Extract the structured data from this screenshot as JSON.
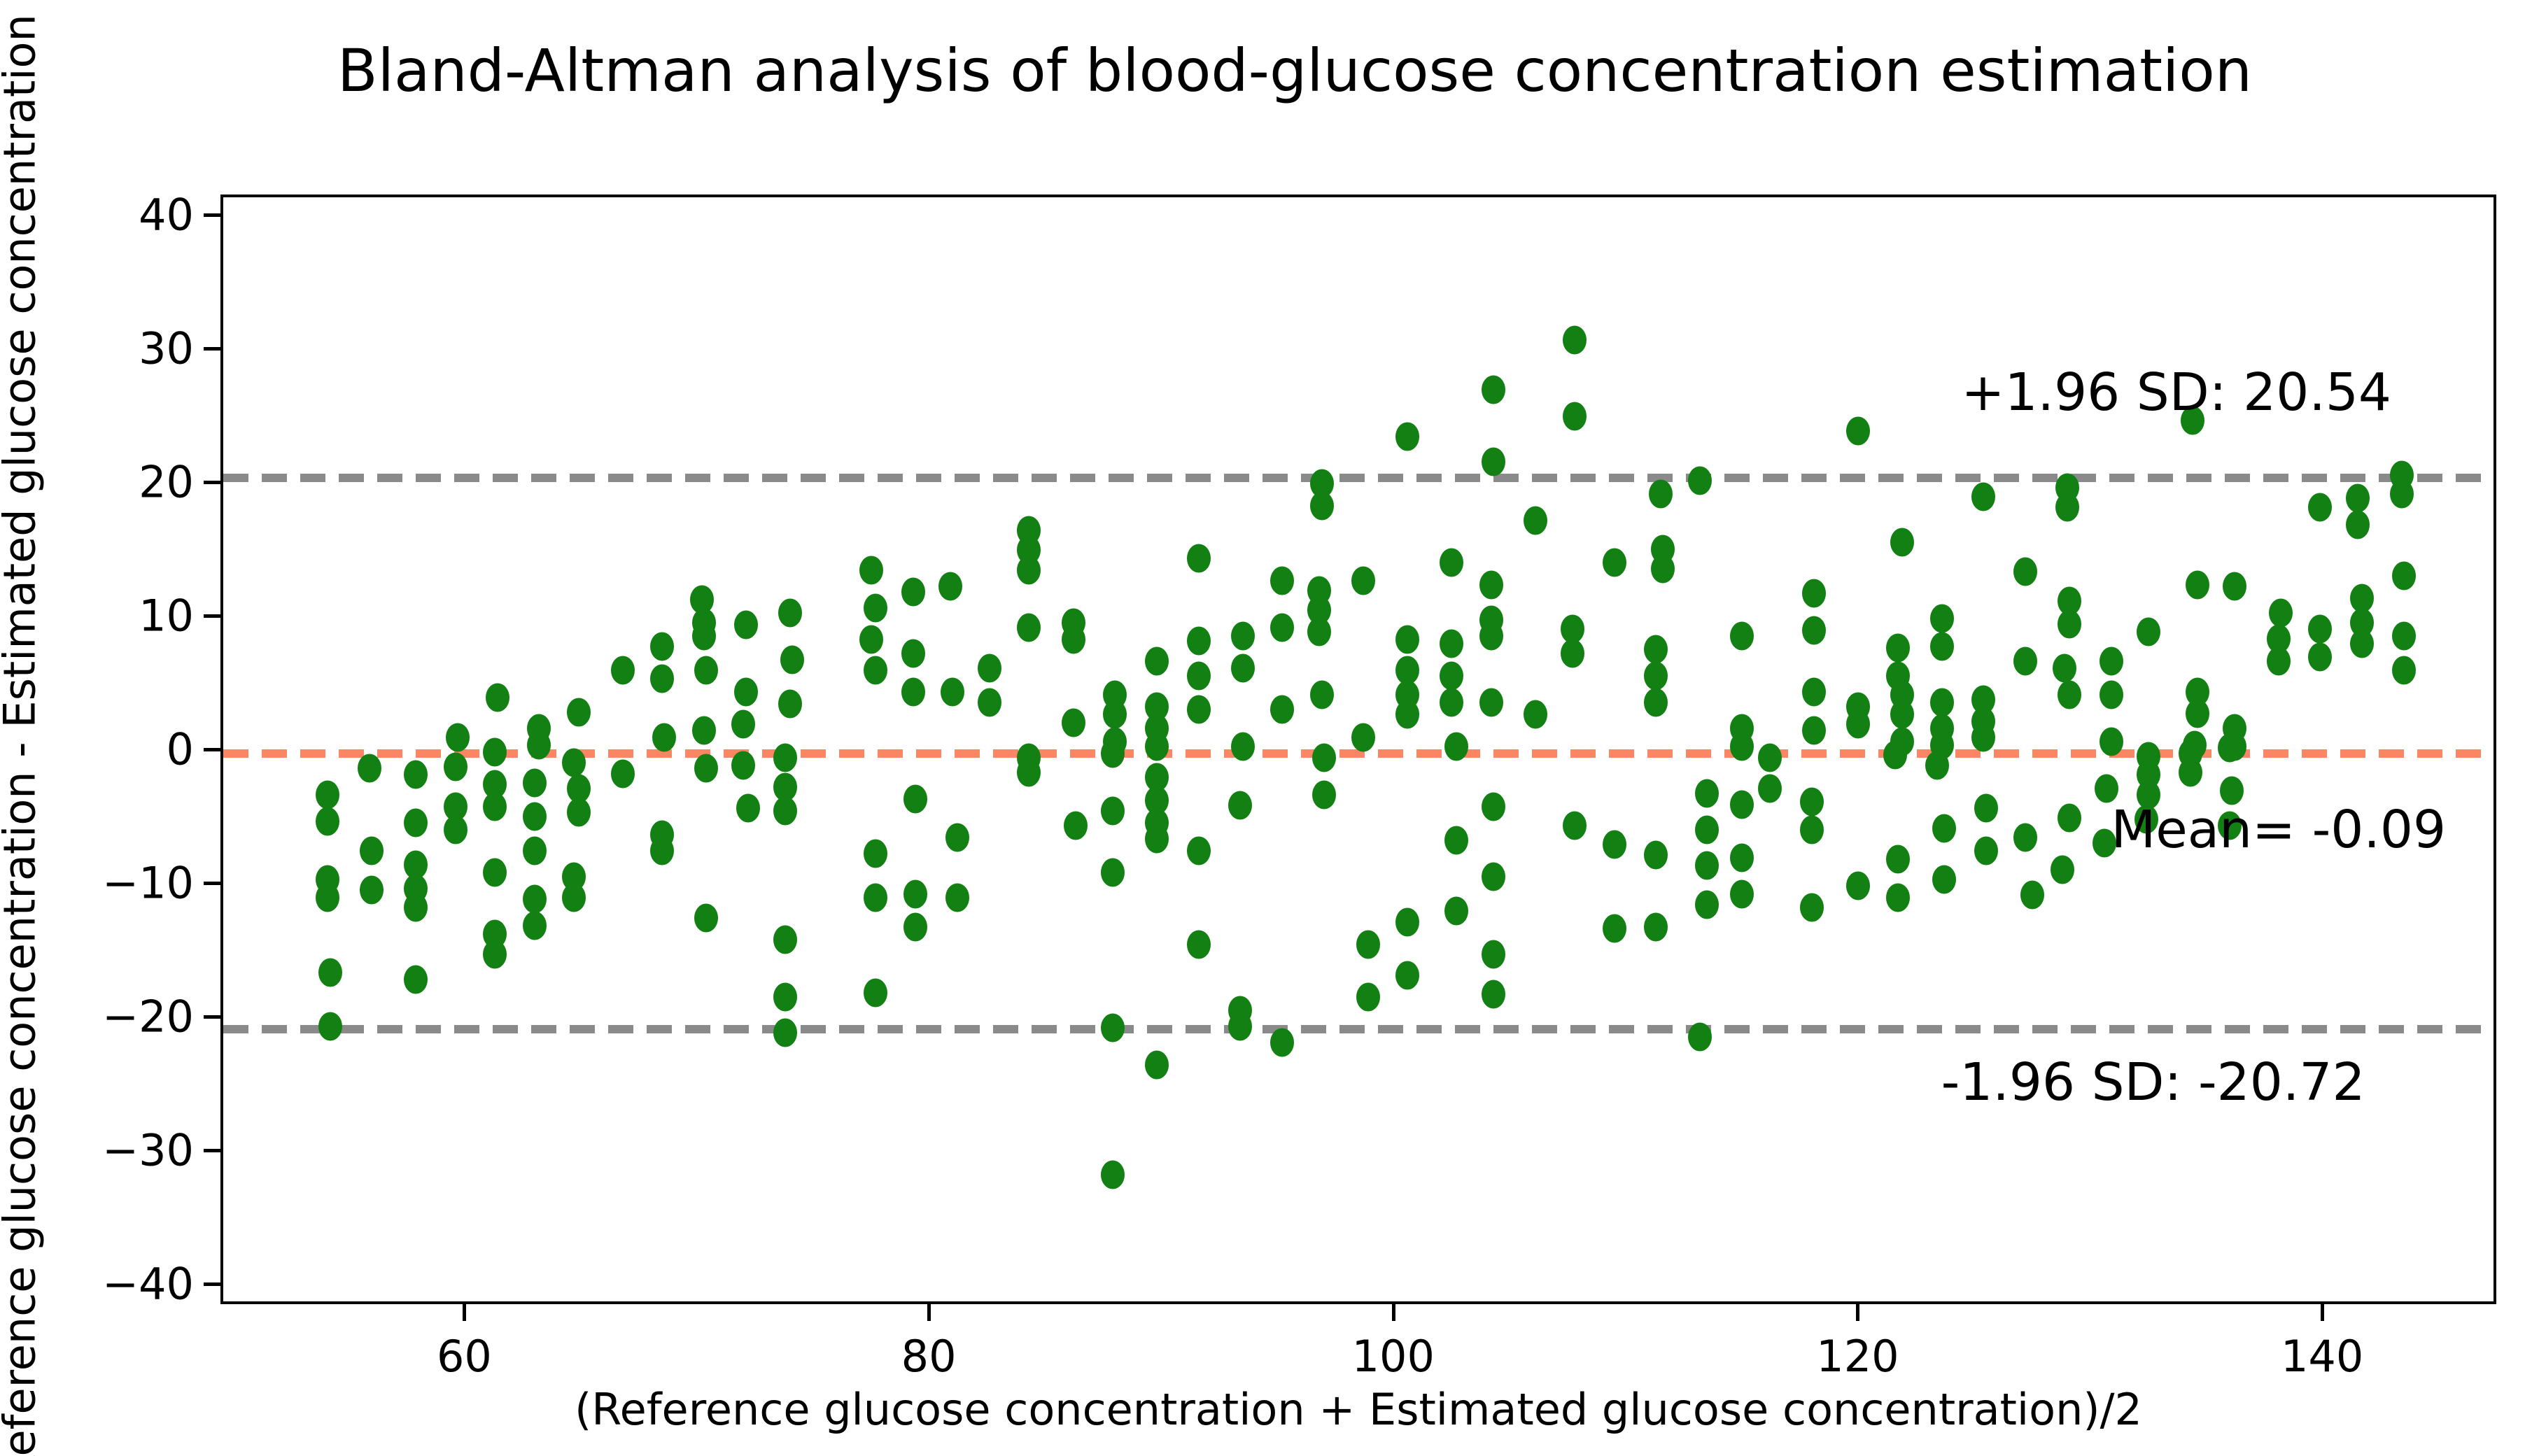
{
  "chart_data": {
    "type": "scatter",
    "title": "Bland-Altman analysis of blood-glucose concentration estimation",
    "xlabel": "(Reference glucose concentration + Estimated glucose concentration)/2",
    "ylabel": "Reference glucose concentration - Estimated glucose concentration",
    "xlim": [
      49.5,
      147.5
    ],
    "ylim": [
      -41.5,
      41.5
    ],
    "x_ticks": [
      60,
      80,
      100,
      120,
      140
    ],
    "y_ticks": [
      40,
      30,
      20,
      10,
      0,
      -10,
      -20,
      -30,
      -40
    ],
    "grid": false,
    "legend": false,
    "marker_color": "#128012",
    "axis_color": "#000000",
    "reference_lines": [
      {
        "id": "upper-loa-line",
        "value": 20.54,
        "color": "#8a8a8a"
      },
      {
        "id": "mean-line",
        "value": -0.09,
        "color": "#fb8664"
      },
      {
        "id": "lower-loa-line",
        "value": -20.72,
        "color": "#8a8a8a"
      }
    ],
    "annotations": [
      {
        "id": "upper-sd-label",
        "text": "+1.96 SD: 20.54",
        "x": 133.6,
        "y": 26.9
      },
      {
        "id": "mean-label",
        "text": "Mean= -0.09",
        "x": 138.0,
        "y": -5.8
      },
      {
        "id": "lower-sd-label",
        "text": "-1.96 SD: -20.72",
        "x": 132.6,
        "y": -24.7
      }
    ],
    "points": [
      [
        54.0,
        -3.2
      ],
      [
        54.0,
        -5.2
      ],
      [
        54.0,
        -9.5
      ],
      [
        54.0,
        -10.9
      ],
      [
        54.1,
        -16.5
      ],
      [
        54.1,
        -20.5
      ],
      [
        55.8,
        -1.2
      ],
      [
        55.9,
        -7.4
      ],
      [
        55.9,
        -10.3
      ],
      [
        57.8,
        -1.7
      ],
      [
        57.8,
        -5.3
      ],
      [
        57.8,
        -8.4
      ],
      [
        57.8,
        -10.2
      ],
      [
        57.8,
        -11.6
      ],
      [
        57.8,
        -17.0
      ],
      [
        59.5,
        -1.1
      ],
      [
        59.5,
        -4.1
      ],
      [
        59.5,
        -5.8
      ],
      [
        59.6,
        1.1
      ],
      [
        61.2,
        0.0
      ],
      [
        61.2,
        -2.4
      ],
      [
        61.2,
        -4.1
      ],
      [
        61.2,
        -9.0
      ],
      [
        61.2,
        -13.6
      ],
      [
        61.2,
        -15.1
      ],
      [
        61.3,
        4.1
      ],
      [
        62.9,
        -2.3
      ],
      [
        62.9,
        -4.8
      ],
      [
        62.9,
        -7.4
      ],
      [
        62.9,
        -11.0
      ],
      [
        62.9,
        -13.0
      ],
      [
        63.1,
        1.8
      ],
      [
        63.1,
        0.5
      ],
      [
        64.6,
        -0.8
      ],
      [
        64.6,
        -9.3
      ],
      [
        64.6,
        -10.9
      ],
      [
        64.8,
        3.0
      ],
      [
        64.8,
        -2.7
      ],
      [
        64.8,
        -4.5
      ],
      [
        66.7,
        6.1
      ],
      [
        66.7,
        -1.6
      ],
      [
        68.4,
        7.9
      ],
      [
        68.4,
        5.5
      ],
      [
        68.5,
        1.1
      ],
      [
        68.4,
        -6.2
      ],
      [
        68.4,
        -7.4
      ],
      [
        70.1,
        11.4
      ],
      [
        70.2,
        9.7
      ],
      [
        70.2,
        8.7
      ],
      [
        70.3,
        6.1
      ],
      [
        70.2,
        1.6
      ],
      [
        70.3,
        -1.2
      ],
      [
        70.3,
        -12.4
      ],
      [
        71.9,
        2.1
      ],
      [
        71.9,
        -1.0
      ],
      [
        72.0,
        9.5
      ],
      [
        72.0,
        4.5
      ],
      [
        72.1,
        -4.2
      ],
      [
        73.9,
        10.4
      ],
      [
        74.0,
        6.9
      ],
      [
        73.9,
        3.6
      ],
      [
        73.7,
        -0.4
      ],
      [
        73.7,
        -2.6
      ],
      [
        73.7,
        -4.4
      ],
      [
        73.7,
        -14.0
      ],
      [
        73.7,
        -18.3
      ],
      [
        73.7,
        -21.0
      ],
      [
        77.4,
        13.6
      ],
      [
        77.6,
        10.8
      ],
      [
        77.4,
        8.4
      ],
      [
        77.6,
        6.1
      ],
      [
        77.6,
        -7.6
      ],
      [
        77.6,
        -10.9
      ],
      [
        77.6,
        -18.0
      ],
      [
        79.2,
        12.0
      ],
      [
        79.2,
        7.4
      ],
      [
        79.2,
        4.5
      ],
      [
        79.3,
        -3.5
      ],
      [
        79.3,
        -10.6
      ],
      [
        79.3,
        -13.1
      ],
      [
        80.8,
        12.4
      ],
      [
        80.9,
        4.5
      ],
      [
        81.1,
        -6.4
      ],
      [
        81.1,
        -10.9
      ],
      [
        82.5,
        6.3
      ],
      [
        82.5,
        3.7
      ],
      [
        84.2,
        16.6
      ],
      [
        84.2,
        15.1
      ],
      [
        84.2,
        13.6
      ],
      [
        84.2,
        9.3
      ],
      [
        84.2,
        -0.4
      ],
      [
        84.2,
        -1.5
      ],
      [
        86.1,
        9.7
      ],
      [
        86.1,
        8.4
      ],
      [
        86.1,
        2.2
      ],
      [
        86.2,
        -5.5
      ],
      [
        87.9,
        4.3
      ],
      [
        87.9,
        2.8
      ],
      [
        87.9,
        0.8
      ],
      [
        87.8,
        -0.1
      ],
      [
        87.8,
        -4.4
      ],
      [
        87.8,
        -9.0
      ],
      [
        87.8,
        -20.6
      ],
      [
        87.8,
        -31.6
      ],
      [
        89.7,
        6.8
      ],
      [
        89.7,
        3.4
      ],
      [
        89.7,
        1.8
      ],
      [
        89.7,
        0.4
      ],
      [
        89.7,
        -1.9
      ],
      [
        89.7,
        -3.6
      ],
      [
        89.7,
        -5.3
      ],
      [
        89.7,
        -6.5
      ],
      [
        89.7,
        -23.4
      ],
      [
        91.5,
        14.5
      ],
      [
        91.5,
        8.3
      ],
      [
        91.5,
        5.7
      ],
      [
        91.5,
        3.2
      ],
      [
        91.5,
        -7.4
      ],
      [
        91.5,
        -14.4
      ],
      [
        93.4,
        8.7
      ],
      [
        93.4,
        6.3
      ],
      [
        93.4,
        0.4
      ],
      [
        93.3,
        -4.0
      ],
      [
        93.3,
        -19.3
      ],
      [
        93.3,
        -20.5
      ],
      [
        95.1,
        12.8
      ],
      [
        95.1,
        9.3
      ],
      [
        95.1,
        3.2
      ],
      [
        95.1,
        -21.7
      ],
      [
        96.7,
        12.1
      ],
      [
        96.7,
        10.6
      ],
      [
        96.7,
        9.0
      ],
      [
        96.8,
        20.1
      ],
      [
        96.8,
        18.4
      ],
      [
        96.8,
        4.3
      ],
      [
        96.9,
        -0.4
      ],
      [
        96.9,
        -3.2
      ],
      [
        98.6,
        12.8
      ],
      [
        98.6,
        1.1
      ],
      [
        98.8,
        -14.4
      ],
      [
        98.8,
        -18.3
      ],
      [
        100.5,
        23.6
      ],
      [
        100.5,
        8.4
      ],
      [
        100.5,
        6.1
      ],
      [
        100.5,
        4.3
      ],
      [
        100.5,
        2.8
      ],
      [
        100.5,
        -12.7
      ],
      [
        100.5,
        -16.7
      ],
      [
        102.4,
        14.2
      ],
      [
        102.4,
        8.1
      ],
      [
        102.4,
        5.7
      ],
      [
        102.4,
        3.7
      ],
      [
        102.6,
        0.4
      ],
      [
        102.6,
        -6.6
      ],
      [
        102.6,
        -11.9
      ],
      [
        104.2,
        27.1
      ],
      [
        104.2,
        21.7
      ],
      [
        104.1,
        12.5
      ],
      [
        104.1,
        9.9
      ],
      [
        104.1,
        8.7
      ],
      [
        104.1,
        3.7
      ],
      [
        104.2,
        -4.1
      ],
      [
        104.2,
        -9.3
      ],
      [
        104.2,
        -15.1
      ],
      [
        104.2,
        -18.1
      ],
      [
        106.0,
        17.3
      ],
      [
        106.0,
        2.8
      ],
      [
        107.7,
        30.8
      ],
      [
        107.7,
        25.1
      ],
      [
        107.6,
        9.2
      ],
      [
        107.6,
        7.4
      ],
      [
        107.7,
        -5.5
      ],
      [
        109.4,
        14.2
      ],
      [
        109.4,
        -6.9
      ],
      [
        109.4,
        -13.2
      ],
      [
        111.4,
        19.3
      ],
      [
        111.5,
        15.2
      ],
      [
        111.5,
        13.7
      ],
      [
        111.2,
        7.7
      ],
      [
        111.2,
        5.7
      ],
      [
        111.2,
        3.7
      ],
      [
        111.2,
        -7.7
      ],
      [
        111.2,
        -13.1
      ],
      [
        113.1,
        20.3
      ],
      [
        113.4,
        -3.1
      ],
      [
        113.4,
        -5.8
      ],
      [
        113.4,
        -8.5
      ],
      [
        113.4,
        -11.4
      ],
      [
        113.1,
        -21.3
      ],
      [
        114.9,
        8.7
      ],
      [
        114.9,
        1.8
      ],
      [
        114.9,
        0.4
      ],
      [
        114.9,
        -3.9
      ],
      [
        114.9,
        -7.9
      ],
      [
        114.9,
        -10.6
      ],
      [
        116.1,
        -0.4
      ],
      [
        116.1,
        -2.7
      ],
      [
        118.0,
        11.9
      ],
      [
        118.0,
        9.1
      ],
      [
        118.0,
        4.5
      ],
      [
        118.0,
        1.6
      ],
      [
        117.9,
        -3.7
      ],
      [
        117.9,
        -5.8
      ],
      [
        117.9,
        -11.6
      ],
      [
        119.9,
        24.0
      ],
      [
        119.9,
        3.4
      ],
      [
        119.9,
        2.1
      ],
      [
        119.9,
        -10.0
      ],
      [
        121.8,
        15.7
      ],
      [
        121.8,
        4.3
      ],
      [
        121.8,
        2.8
      ],
      [
        121.8,
        0.8
      ],
      [
        121.6,
        7.8
      ],
      [
        121.6,
        5.7
      ],
      [
        121.5,
        -0.2
      ],
      [
        121.6,
        -8.0
      ],
      [
        121.6,
        -10.9
      ],
      [
        123.5,
        10.0
      ],
      [
        123.5,
        7.9
      ],
      [
        123.5,
        3.7
      ],
      [
        123.5,
        1.8
      ],
      [
        123.5,
        0.5
      ],
      [
        123.3,
        -1.0
      ],
      [
        123.6,
        -5.7
      ],
      [
        123.6,
        -9.5
      ],
      [
        125.3,
        19.1
      ],
      [
        125.3,
        3.9
      ],
      [
        125.3,
        2.3
      ],
      [
        125.3,
        1.1
      ],
      [
        125.4,
        -4.2
      ],
      [
        125.4,
        -7.4
      ],
      [
        127.1,
        13.5
      ],
      [
        127.1,
        6.8
      ],
      [
        127.1,
        -6.4
      ],
      [
        127.4,
        -10.7
      ],
      [
        128.9,
        19.8
      ],
      [
        128.9,
        18.3
      ],
      [
        128.8,
        6.3
      ],
      [
        128.7,
        -8.8
      ],
      [
        129.0,
        11.3
      ],
      [
        129.0,
        9.6
      ],
      [
        129.0,
        4.3
      ],
      [
        129.0,
        -4.9
      ],
      [
        130.8,
        6.8
      ],
      [
        130.8,
        4.3
      ],
      [
        130.8,
        0.8
      ],
      [
        130.6,
        -2.7
      ],
      [
        130.5,
        -6.8
      ],
      [
        132.4,
        9.0
      ],
      [
        132.4,
        -0.3
      ],
      [
        132.4,
        -1.7
      ],
      [
        132.4,
        -3.2
      ],
      [
        132.3,
        -5.0
      ],
      [
        134.3,
        24.8
      ],
      [
        134.5,
        12.5
      ],
      [
        134.5,
        4.5
      ],
      [
        134.5,
        2.9
      ],
      [
        134.4,
        0.5
      ],
      [
        134.2,
        -0.1
      ],
      [
        134.2,
        -1.5
      ],
      [
        136.1,
        12.4
      ],
      [
        136.1,
        1.8
      ],
      [
        136.1,
        0.4
      ],
      [
        135.9,
        0.3
      ],
      [
        136.0,
        -2.9
      ],
      [
        135.9,
        -5.5
      ],
      [
        138.1,
        10.4
      ],
      [
        138.0,
        8.5
      ],
      [
        138.0,
        6.8
      ],
      [
        139.8,
        18.3
      ],
      [
        139.8,
        9.2
      ],
      [
        139.8,
        7.1
      ],
      [
        141.4,
        19.0
      ],
      [
        141.4,
        17.0
      ],
      [
        141.6,
        11.5
      ],
      [
        141.6,
        9.7
      ],
      [
        141.6,
        8.1
      ],
      [
        143.3,
        20.7
      ],
      [
        143.3,
        19.3
      ],
      [
        143.4,
        13.2
      ],
      [
        143.4,
        8.7
      ],
      [
        143.4,
        6.1
      ]
    ]
  }
}
